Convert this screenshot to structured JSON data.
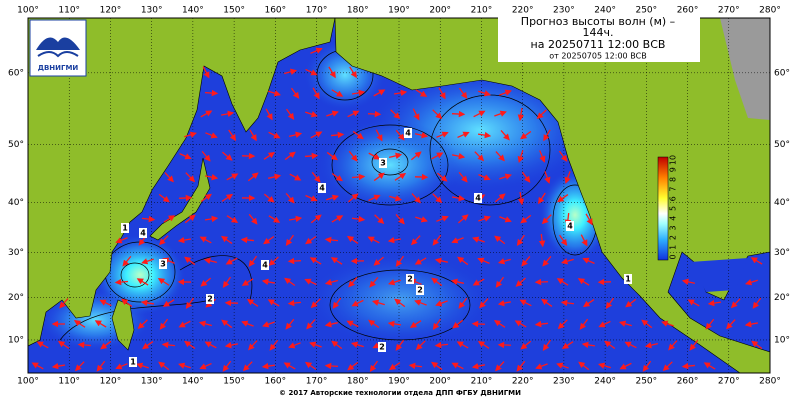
{
  "logo": {
    "text": "ДВНИГМИ"
  },
  "title": {
    "line1": "Прогноз высоты волн (м) –",
    "line2": "144ч.",
    "line3": "на 20250711 12:00 ВСВ",
    "line4": "от 20250705 12:00 ВСВ"
  },
  "lon_labels": [
    {
      "value": 100,
      "label": "100°"
    },
    {
      "value": 110,
      "label": "110°"
    },
    {
      "value": 120,
      "label": "120°"
    },
    {
      "value": 130,
      "label": "130°"
    },
    {
      "value": 140,
      "label": "140°"
    },
    {
      "value": 150,
      "label": "150°"
    },
    {
      "value": 160,
      "label": "160°"
    },
    {
      "value": 170,
      "label": "170°"
    },
    {
      "value": 180,
      "label": "180°"
    },
    {
      "value": 190,
      "label": "190°"
    },
    {
      "value": 200,
      "label": "200°"
    },
    {
      "value": 210,
      "label": "210°"
    },
    {
      "value": 220,
      "label": "220°"
    },
    {
      "value": 230,
      "label": "230°"
    },
    {
      "value": 240,
      "label": "240°"
    },
    {
      "value": 250,
      "label": "250°"
    },
    {
      "value": 260,
      "label": "260°"
    },
    {
      "value": 270,
      "label": "270°"
    },
    {
      "value": 280,
      "label": "280°"
    }
  ],
  "lat_labels": [
    {
      "value": 10,
      "label": "10°"
    },
    {
      "value": 20,
      "label": "20°"
    },
    {
      "value": 30,
      "label": "30°"
    },
    {
      "value": 40,
      "label": "40°"
    },
    {
      "value": 50,
      "label": "50°"
    },
    {
      "value": 60,
      "label": "60°"
    }
  ],
  "colorbar": {
    "labels": [
      0,
      1,
      2,
      3,
      4,
      5,
      6,
      7,
      8,
      9,
      10
    ]
  },
  "contour_labels": [
    "1",
    "4",
    "3",
    "2",
    "1",
    "4",
    "4",
    "3",
    "4",
    "4",
    "4",
    "2",
    "2",
    "2",
    "1"
  ],
  "footer": "© 2017 Авторские технологии отдела ДПП ФГБУ ДВНИГМИ"
}
